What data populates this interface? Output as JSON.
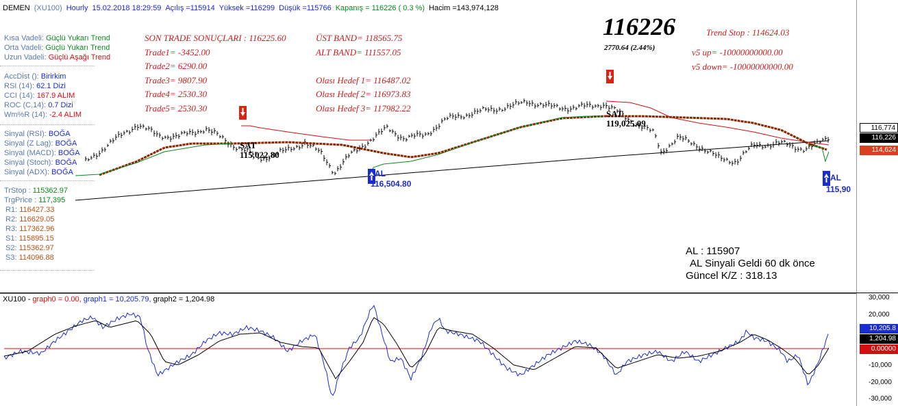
{
  "header": {
    "symbol": "DEMEN",
    "index": "(XU100)",
    "period": "Hourly",
    "datetime": "15.02.2018 18:29:59",
    "open": "Açılış =115914",
    "high": "Yüksek =116299",
    "low": "Düşük =115766",
    "close": "Kapanış = 116226 ( 0.3 %)",
    "volume": "Hacim =143,974,128"
  },
  "trend": [
    {
      "label": "Kısa Vadeli:",
      "value": "Güçlü Yukarı Trend",
      "color": "#0a8a1a"
    },
    {
      "label": "Orta Vadeli:",
      "value": "Güçlü Yukarı Trend",
      "color": "#0a8a1a"
    },
    {
      "label": "Uzun Vadeli:",
      "value": "Güçlü Aşağı Trend",
      "color": "#d01010"
    }
  ],
  "indicators": [
    {
      "label": "AccDist ():",
      "value": "Birirkim",
      "color": "#1a2bd0"
    },
    {
      "label": "RSI (14):",
      "value": "62.1 Dizi",
      "color": "#1a2bd0"
    },
    {
      "label": "CCI (14):",
      "value": "167.9 ALIM",
      "color": "#d01010"
    },
    {
      "label": "ROC (C,14):",
      "value": "0.7 Dizi",
      "color": "#1a2bd0"
    },
    {
      "label": "Wm%R (14):",
      "value": "-2.4 ALIM",
      "color": "#d01010"
    }
  ],
  "signals": [
    {
      "label": "Sinyal (RSI):",
      "value": "BOĞA"
    },
    {
      "label": "Sinyal (Z Lag):",
      "value": "BOĞA"
    },
    {
      "label": "Sinyal (MACD):",
      "value": "BOĞA"
    },
    {
      "label": "Sinyal (Stoch):",
      "value": "BOĞA"
    },
    {
      "label": "Sinyal (ADX):",
      "value": "BOĞA"
    }
  ],
  "levels": [
    {
      "label": "TrStop :",
      "value": "115362.97",
      "color": "#0a8a1a"
    },
    {
      "label": "TrgPrice :",
      "value": "117,395",
      "color": "#0a8a1a"
    },
    {
      "label": "R1:",
      "value": "116427.33",
      "color": "#c05010"
    },
    {
      "label": "R2:",
      "value": "116629.05",
      "color": "#c05010"
    },
    {
      "label": "R3:",
      "value": "117362.96",
      "color": "#c05010"
    },
    {
      "label": "S1:",
      "value": "115895.15",
      "color": "#c05010"
    },
    {
      "label": "S2:",
      "value": "115362.97",
      "color": "#c05010"
    },
    {
      "label": "S3:",
      "value": "114096.88",
      "color": "#c05010"
    }
  ],
  "trade_results": {
    "title": "SON TRADE SONUÇLARI : 116225.60",
    "trades": [
      "Trade1= -3452.00",
      "Trade2= 6290.00",
      "Trade3= 9807.90",
      "Trade4= 2530.30",
      "Trade5= 2530.30"
    ]
  },
  "bands": {
    "upper": "ÜST BAND= 118565.75",
    "lower": "ALT BAND= 111557.05",
    "targets": [
      "Olası Hedef 1= 116487.02",
      "Olası Hedef 2= 116973.83",
      "Olası Hedef 3= 117982.22"
    ]
  },
  "big_price": {
    "value": "116226",
    "change": "2770.64  (2.44%)"
  },
  "trend_stop": {
    "stop": "Trend Stop : 114624.03",
    "v5_up": "v5 up= -10000000000.00",
    "v5_down": "v5 down= -10000000000.00"
  },
  "signal_box": {
    "line1": "AL  : 115907",
    "line2": "AL Sinyali Geldi 60 dk önce",
    "line3": "Güncel K/Z : 318.13"
  },
  "annotations": [
    {
      "text": "SAT",
      "price": "115,022.80"
    },
    {
      "text": "SAT",
      "price": "119,025.09"
    },
    {
      "text": "AL",
      "price": "116,504.80"
    },
    {
      "text": "AL",
      "price": "115,90"
    }
  ],
  "price_axis_tags": [
    {
      "value": "116,774",
      "bg": "#ffffff",
      "fg": "#000000"
    },
    {
      "value": "116,226",
      "bg": "#000000",
      "fg": "#ffffff"
    },
    {
      "value": "114,624",
      "bg": "#d84020",
      "fg": "#ffffff"
    }
  ],
  "osc": {
    "title": "XU100 - graph0 = 0.00, graph1 = 10,205.79, graph2 = 1,204.98",
    "title_parts": {
      "name": "XU100 - ",
      "g0": "graph0 = 0.00, ",
      "g1": "graph1 = 10,205.79, ",
      "g2": "graph2 = 1,204.98"
    },
    "axis_ticks": [
      "30,000",
      "20,000",
      "10,000",
      "-10,000",
      "-20,000",
      "-30,000"
    ],
    "tags": [
      {
        "value": "10,205.8",
        "bg": "#1a2bd0",
        "fg": "#ffffff"
      },
      {
        "value": "1,204.98",
        "bg": "#000000",
        "fg": "#ffffff"
      },
      {
        "value": "0.00000",
        "bg": "#d01010",
        "fg": "#ffffff"
      }
    ]
  },
  "chart_data": [
    {
      "type": "line",
      "title": "",
      "series": [
        {
          "name": "",
          "color": "#000000"
        },
        {
          "name": "",
          "color": "#d01010"
        },
        {
          "name": "",
          "color": "#8b2500"
        },
        {
          "name": "",
          "color": "#0a8a1a"
        }
      ]
    },
    {
      "type": "line",
      "title": "XU100 - graph0 = 0.00, graph1 = 10,205.79, graph2 = 1,204.98",
      "ylim": [
        -30000,
        30000
      ],
      "series": [
        {
          "name": "graph0",
          "last": 0.0,
          "color": "#d01010"
        },
        {
          "name": "graph1",
          "last": 10205.79,
          "color": "#1a2bd0"
        },
        {
          "name": "graph2",
          "last": 1204.98,
          "color": "#000000"
        }
      ]
    }
  ]
}
